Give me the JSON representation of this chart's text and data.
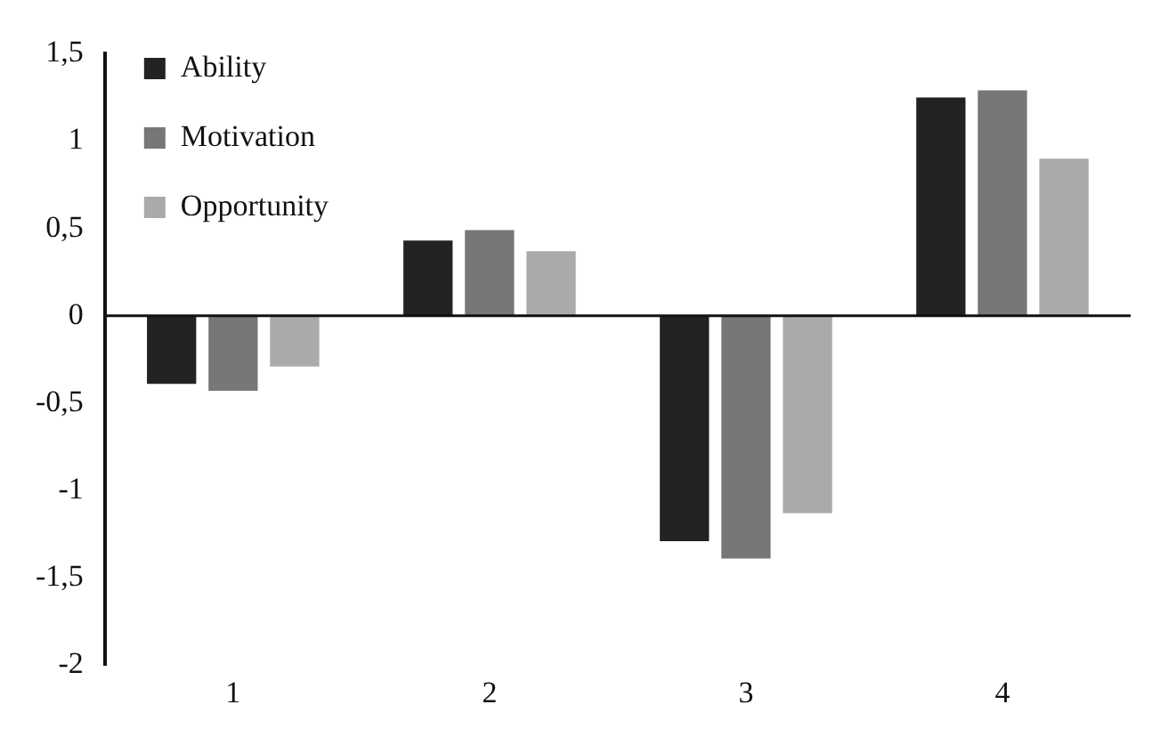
{
  "chart_data": {
    "type": "bar",
    "categories": [
      "1",
      "2",
      "3",
      "4"
    ],
    "series": [
      {
        "name": "Ability",
        "color": "#222222",
        "values": [
          -0.39,
          0.43,
          -1.29,
          1.25
        ]
      },
      {
        "name": "Motivation",
        "color": "#777777",
        "values": [
          -0.43,
          0.49,
          -1.39,
          1.29
        ]
      },
      {
        "name": "Opportunity",
        "color": "#aaaaaa",
        "values": [
          -0.29,
          0.37,
          -1.13,
          0.9
        ]
      }
    ],
    "ylim": [
      -2,
      1.5
    ],
    "yticks": [
      {
        "value": -2,
        "label": "-2"
      },
      {
        "value": -1.5,
        "label": "-1,5"
      },
      {
        "value": -1,
        "label": "-1"
      },
      {
        "value": -0.5,
        "label": "-0,5"
      },
      {
        "value": 0,
        "label": "0"
      },
      {
        "value": 0.5,
        "label": "0,5"
      },
      {
        "value": 1,
        "label": "1"
      },
      {
        "value": 1.5,
        "label": "1,5"
      }
    ],
    "ref_lines": [
      {
        "axis": "y",
        "value": 0,
        "color": "#111111"
      }
    ],
    "grid": false,
    "legend": "top left"
  }
}
